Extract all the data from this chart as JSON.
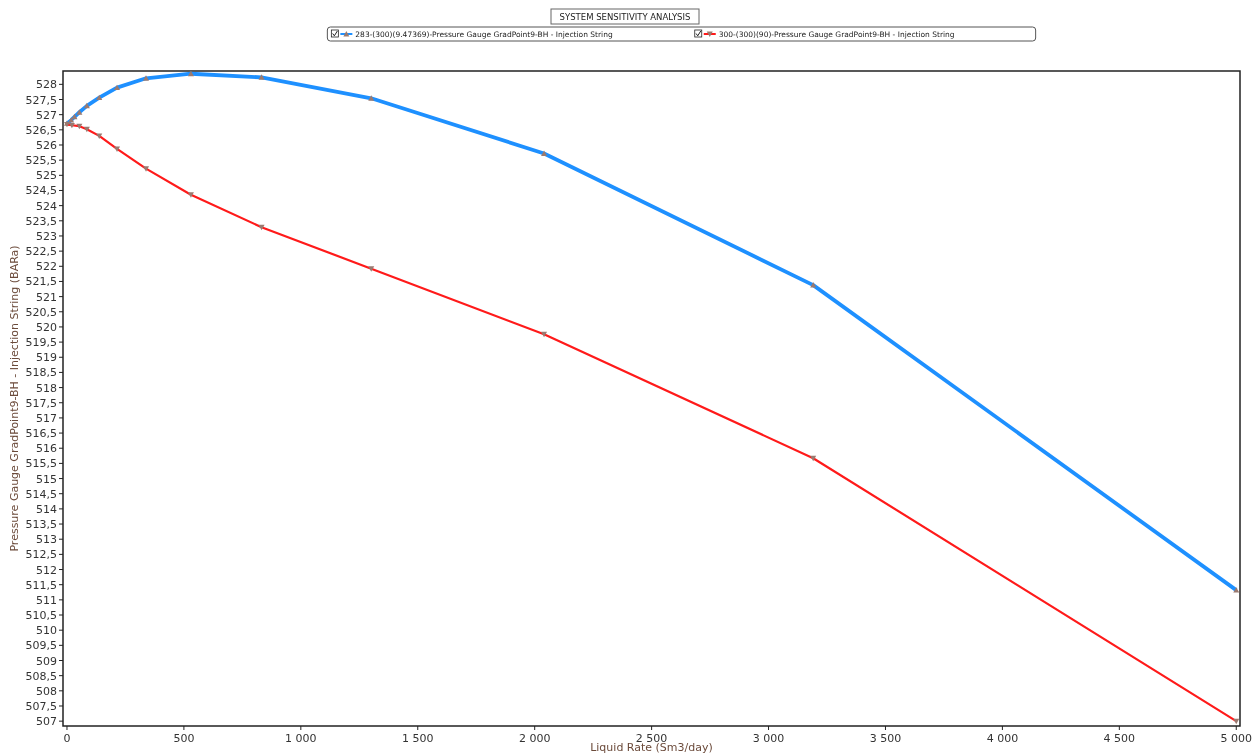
{
  "chart_data": {
    "type": "line",
    "title": "SYSTEM SENSITIVITY ANALYSIS",
    "xlabel": "Liquid Rate  (Sm3/day)",
    "ylabel": "Pressure Gauge GradPoint9-BH - Injection String  (BARa)",
    "xlim": [
      -17,
      5016
    ],
    "ylim": [
      506.84,
      528.44
    ],
    "xticks": [
      0,
      {
        "value": 500,
        "label": "500"
      },
      {
        "value": 1000,
        "label": "1 000"
      },
      {
        "value": 1500,
        "label": "1 500"
      },
      {
        "value": 2000,
        "label": "2 000"
      },
      {
        "value": 2500,
        "label": "2 500"
      },
      {
        "value": 3000,
        "label": "3 000"
      },
      {
        "value": 3500,
        "label": "3 500"
      },
      {
        "value": 4000,
        "label": "4 000"
      },
      {
        "value": 4500,
        "label": "4 500"
      },
      {
        "value": 5000,
        "label": "5 000"
      }
    ],
    "yticks": [
      507,
      {
        "value": 507.5,
        "label": "507,5"
      },
      508,
      {
        "value": 508.5,
        "label": "508,5"
      },
      509,
      {
        "value": 509.5,
        "label": "509,5"
      },
      510,
      {
        "value": 510.5,
        "label": "510,5"
      },
      511,
      {
        "value": 511.5,
        "label": "511,5"
      },
      512,
      {
        "value": 512.5,
        "label": "512,5"
      },
      513,
      {
        "value": 513.5,
        "label": "513,5"
      },
      514,
      {
        "value": 514.5,
        "label": "514,5"
      },
      515,
      {
        "value": 515.5,
        "label": "515,5"
      },
      516,
      {
        "value": 516.5,
        "label": "516,5"
      },
      517,
      {
        "value": 517.5,
        "label": "517,5"
      },
      518,
      {
        "value": 518.5,
        "label": "518,5"
      },
      519,
      {
        "value": 519.5,
        "label": "519,5"
      },
      520,
      {
        "value": 520.5,
        "label": "520,5"
      },
      521,
      {
        "value": 521.5,
        "label": "521,5"
      },
      522,
      {
        "value": 522.5,
        "label": "522,5"
      },
      523,
      {
        "value": 523.5,
        "label": "523,5"
      },
      524,
      {
        "value": 524.5,
        "label": "524,5"
      },
      525,
      {
        "value": 525.5,
        "label": "525,5"
      },
      526,
      {
        "value": 526.5,
        "label": "526,5"
      },
      527,
      {
        "value": 527.5,
        "label": "527,5"
      },
      528
    ],
    "grid": false,
    "legend": "top",
    "line_style": "solid",
    "series": [
      {
        "name": "283-(300)(9.47369)-Pressure Gauge GradPoint9-BH - Injection String",
        "color": "#1e90ff",
        "marker": "triangle",
        "x": [
          0,
          18,
          32,
          53,
          85,
          138,
          214,
          338,
          530,
          832,
          1301,
          2040,
          3191,
          5000
        ],
        "values": [
          526.71,
          526.82,
          526.93,
          527.08,
          527.29,
          527.56,
          527.89,
          528.2,
          528.35,
          528.23,
          527.54,
          525.72,
          521.38,
          511.32
        ]
      },
      {
        "name": "300-(300)(90)-Pressure Gauge GradPoint9-BH - Injection String",
        "color": "#ff1a1a",
        "marker": "triangle-down",
        "x": [
          0,
          21,
          53,
          85,
          138,
          214,
          338,
          530,
          832,
          1301,
          2040,
          3191,
          5000
        ],
        "values": [
          526.68,
          526.65,
          526.62,
          526.52,
          526.3,
          525.87,
          525.22,
          524.36,
          523.29,
          521.92,
          519.76,
          515.67,
          507.0
        ]
      }
    ]
  }
}
